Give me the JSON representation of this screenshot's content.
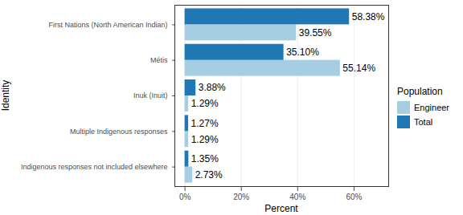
{
  "chart_data": {
    "type": "bar",
    "orientation": "horizontal",
    "categories": [
      "First Nations (North American Indian)",
      "Métis",
      "Inuk (Inuit)",
      "Multiple Indigenous responses",
      "Indigenous responses not included elsewhere"
    ],
    "series": [
      {
        "name": "Engineer",
        "color": "#a6cee3",
        "values": [
          39.55,
          55.14,
          1.29,
          1.29,
          2.73
        ],
        "value_labels": [
          "39.55%",
          "55.14%",
          "1.29%",
          "1.29%",
          "2.73%"
        ]
      },
      {
        "name": "Total",
        "color": "#1f78b4",
        "values": [
          58.38,
          35.1,
          3.88,
          1.27,
          1.35
        ],
        "value_labels": [
          "58.38%",
          "35.10%",
          "3.88%",
          "1.27%",
          "1.35%"
        ]
      }
    ],
    "x_label": "Percent",
    "y_label": "Identity",
    "legend_title": "Population",
    "legend": "right",
    "xlim": [
      -3.6,
      72.3
    ],
    "xticks": [
      {
        "value": 0,
        "label": "0%"
      },
      {
        "value": 20,
        "label": "20%"
      },
      {
        "value": 40,
        "label": "40%"
      },
      {
        "value": 60,
        "label": "60%"
      }
    ],
    "grid": true,
    "data_labels": true
  }
}
